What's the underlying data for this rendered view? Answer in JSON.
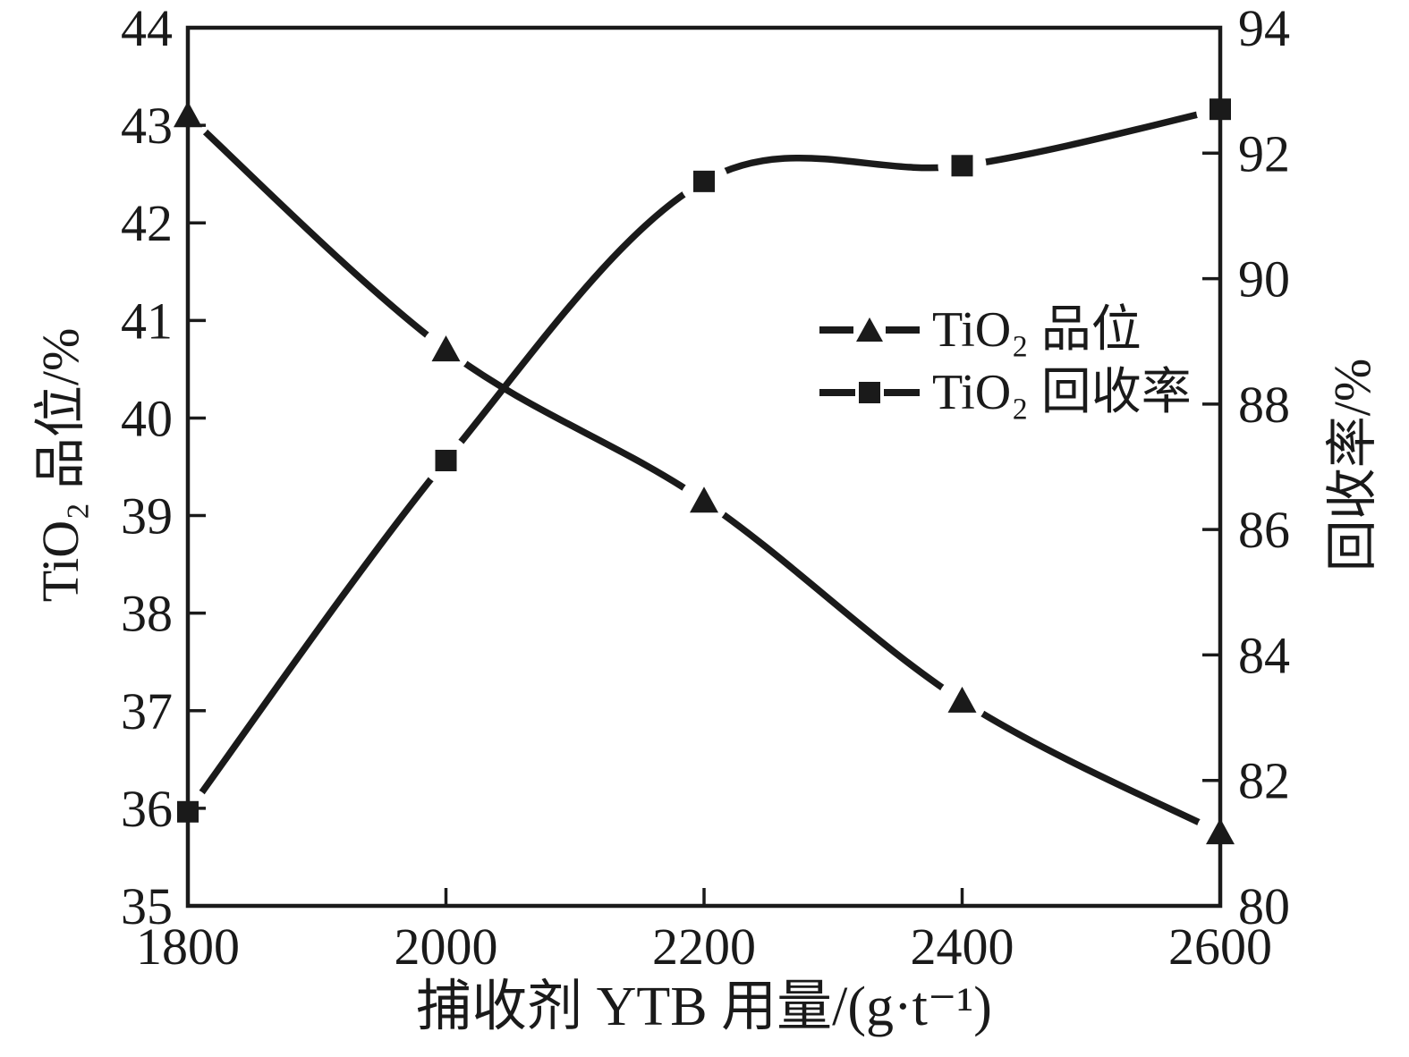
{
  "figure": {
    "background": "#ffffff",
    "ink_color": "#1a1a1a"
  },
  "chart_data": {
    "type": "line",
    "title": "",
    "xlabel": "捕收剂 YTB 用量/(g·t⁻¹)",
    "x": [
      1800,
      2000,
      2200,
      2400,
      2600
    ],
    "x_ticks": [
      1800,
      2000,
      2200,
      2400,
      2600
    ],
    "x_range": [
      1800,
      2600
    ],
    "left_axis": {
      "label": "TiO₂ 品位/%",
      "min": 35,
      "max": 44,
      "ticks": [
        35,
        36,
        37,
        38,
        39,
        40,
        41,
        42,
        43,
        44
      ]
    },
    "right_axis": {
      "label": "回收率/%",
      "min": 80,
      "max": 94,
      "ticks": [
        80,
        82,
        84,
        86,
        88,
        90,
        92,
        94
      ]
    },
    "series": [
      {
        "name": "TiO₂ 品位",
        "axis": "left",
        "marker": "triangle",
        "values": [
          43.1,
          40.7,
          39.15,
          37.1,
          35.75
        ]
      },
      {
        "name": "TiO₂ 回收率",
        "axis": "right",
        "marker": "square",
        "values": [
          81.5,
          87.1,
          91.55,
          91.8,
          92.7
        ]
      }
    ],
    "legend": {
      "position": "center-right",
      "labels": [
        "TiO₂ 品位",
        "TiO₂ 回收率"
      ]
    },
    "grid": false,
    "line_color": "#1a1a1a",
    "smooth": true
  }
}
